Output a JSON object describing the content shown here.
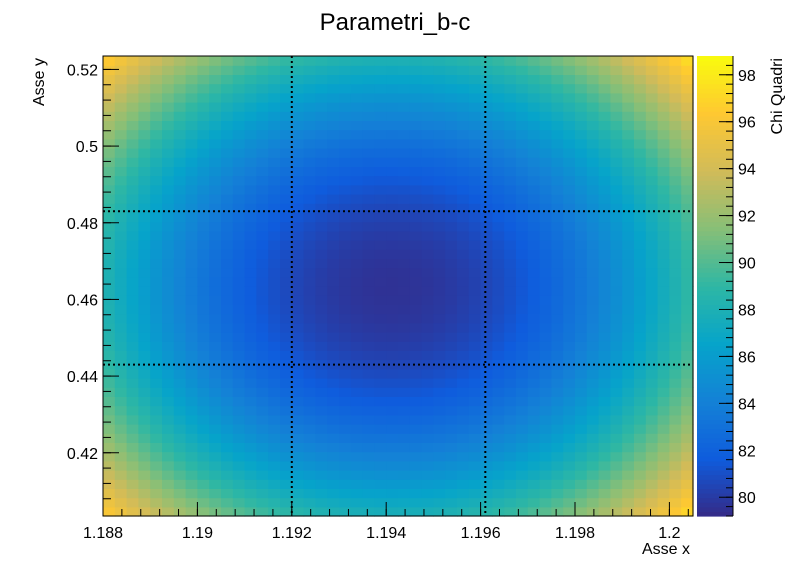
{
  "chart_data": {
    "type": "heatmap",
    "title": "Parametri_b-c",
    "xlabel": "Asse x",
    "ylabel": "Asse y",
    "zlabel": "Chi Quadri",
    "xlim": [
      1.188,
      1.2005
    ],
    "ylim": [
      0.4035,
      0.5235
    ],
    "zlim": [
      79.2,
      98.8
    ],
    "x_ticks": [
      {
        "value": 1.188,
        "label": "1.188"
      },
      {
        "value": 1.19,
        "label": "1.19"
      },
      {
        "value": 1.192,
        "label": "1.192"
      },
      {
        "value": 1.194,
        "label": "1.194"
      },
      {
        "value": 1.196,
        "label": "1.196"
      },
      {
        "value": 1.198,
        "label": "1.198"
      },
      {
        "value": 1.2,
        "label": "1.2"
      }
    ],
    "y_ticks": [
      {
        "value": 0.42,
        "label": "0.42"
      },
      {
        "value": 0.44,
        "label": "0.44"
      },
      {
        "value": 0.46,
        "label": "0.46"
      },
      {
        "value": 0.48,
        "label": "0.48"
      },
      {
        "value": 0.5,
        "label": "0.5"
      },
      {
        "value": 0.52,
        "label": "0.52"
      }
    ],
    "z_ticks": [
      {
        "value": 80,
        "label": "80"
      },
      {
        "value": 82,
        "label": "82"
      },
      {
        "value": 84,
        "label": "84"
      },
      {
        "value": 86,
        "label": "86"
      },
      {
        "value": 88,
        "label": "88"
      },
      {
        "value": 90,
        "label": "90"
      },
      {
        "value": 92,
        "label": "92"
      },
      {
        "value": 94,
        "label": "94"
      },
      {
        "value": 96,
        "label": "96"
      },
      {
        "value": 98,
        "label": "98"
      }
    ],
    "grid": {
      "nx": 50,
      "ny": 50,
      "function": "quadratic chi-square surface",
      "minimum": {
        "x": 1.1941,
        "y": 0.463,
        "z": 79.6
      },
      "corner_values": {
        "x_min_y_min": 95.5,
        "x_max_y_min": 98.8,
        "x_min_y_max": 96.5,
        "x_max_y_max": 98.5
      }
    },
    "contour_lines": {
      "x": [
        1.192,
        1.1961
      ],
      "y": [
        0.443,
        0.483
      ],
      "style": "dotted"
    },
    "palette": [
      "#352a87",
      "#0f5cdd",
      "#1481d6",
      "#06a4ca",
      "#2eb7a4",
      "#87bf77",
      "#d1bb59",
      "#fec832",
      "#f9fb0e"
    ]
  }
}
